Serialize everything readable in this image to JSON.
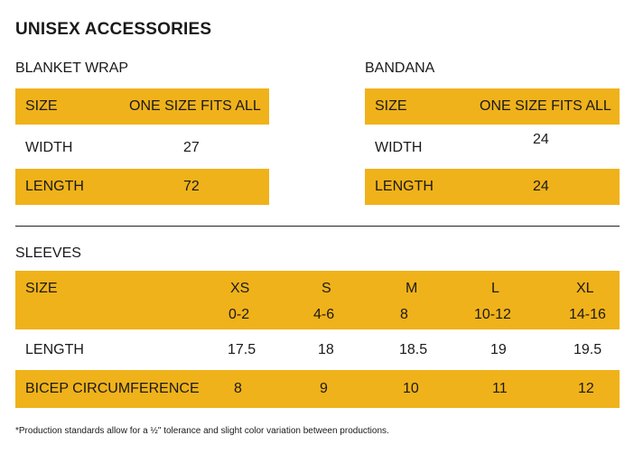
{
  "title": "UNISEX ACCESSORIES",
  "blanket": {
    "heading": "BLANKET WRAP",
    "rows": [
      {
        "label": "SIZE",
        "value": "ONE SIZE FITS ALL"
      },
      {
        "label": "WIDTH",
        "value": "27"
      },
      {
        "label": "LENGTH",
        "value": "72"
      }
    ]
  },
  "bandana": {
    "heading": "BANDANA",
    "rows": [
      {
        "label": "SIZE",
        "value": "ONE SIZE FITS ALL"
      },
      {
        "label": "WIDTH",
        "value": "24"
      },
      {
        "label": "LENGTH",
        "value": "24"
      }
    ]
  },
  "sleeves": {
    "heading": "SLEEVES",
    "size_label": "SIZE",
    "sizes": [
      "XS",
      "S",
      "M",
      "L",
      "XL"
    ],
    "ranges": [
      "0-2",
      "4-6",
      "8",
      "10-12",
      "14-16"
    ],
    "length_label": "LENGTH",
    "lengths": [
      "17.5",
      "18",
      "18.5",
      "19",
      "19.5"
    ],
    "bicep_label": "BICEP CIRCUMFERENCE",
    "biceps": [
      "8",
      "9",
      "10",
      "11",
      "12"
    ]
  },
  "footnote": "*Production standards allow for a ½\" tolerance and slight color variation between productions.",
  "colors": {
    "accent": "#f0b21a"
  }
}
